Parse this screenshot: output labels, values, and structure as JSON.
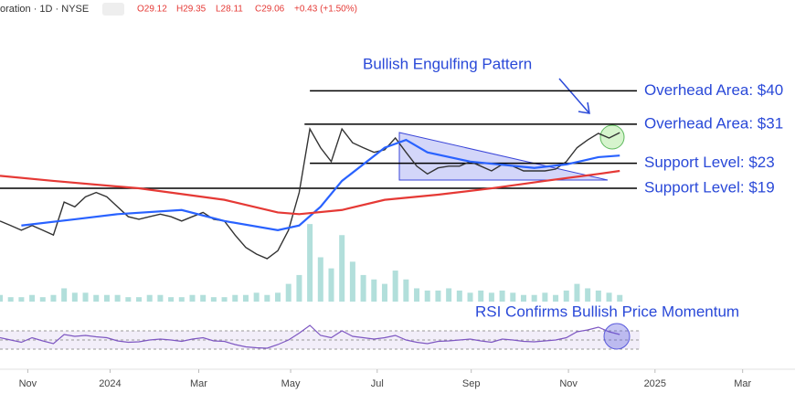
{
  "header": {
    "symbol": "oration · 1D · NYSE",
    "open": "O29.12",
    "high": "H29.35",
    "low": "L28.11",
    "close": "C29.06",
    "change": "+0.43 (+1.50%)"
  },
  "chart_data": {
    "type": "line",
    "annotations": {
      "pattern": "Bullish Engulfing Pattern",
      "rsi": "RSI Confirms Bullish Price Momentum"
    },
    "levels": [
      {
        "label": "Overhead Area: $40",
        "value": 40
      },
      {
        "label": "Overhead Area: $31",
        "value": 31
      },
      {
        "label": "Support Level: $23",
        "value": 23
      },
      {
        "label": "Support Level: $19",
        "value": 19
      }
    ],
    "log_scale": true,
    "ylim": [
      8,
      80
    ],
    "xlim": [
      0,
      74.4
    ],
    "xticks": [
      {
        "value": 2.6,
        "label": "Nov"
      },
      {
        "value": 10.3,
        "label": "2024"
      },
      {
        "value": 18.6,
        "label": "Mar"
      },
      {
        "value": 27.2,
        "label": "May"
      },
      {
        "value": 35.3,
        "label": "Jul"
      },
      {
        "value": 44.1,
        "label": "Sep"
      },
      {
        "value": 53.2,
        "label": "Nov"
      },
      {
        "value": 61.3,
        "label": "2025"
      },
      {
        "value": 69.5,
        "label": "Mar"
      }
    ],
    "series": [
      {
        "color": "#333333",
        "values": [
          14.8,
          14.3,
          13.8,
          14.3,
          13.8,
          13.3,
          17.1,
          16.5,
          17.8,
          18.4,
          17.8,
          16.5,
          15.3,
          15.0,
          15.3,
          15.6,
          15.3,
          14.8,
          15.3,
          15.8,
          15.0,
          14.8,
          13.3,
          12.1,
          11.5,
          11.1,
          11.8,
          13.8,
          18.4,
          29.9,
          25.9,
          23.3,
          29.9,
          26.9,
          25.9,
          25.0,
          25.5,
          27.9,
          25.0,
          22.5,
          21.2,
          22.2,
          22.5,
          22.5,
          23.3,
          22.5,
          21.7,
          22.8,
          22.5,
          21.7,
          21.7,
          21.7,
          22.0,
          23.3,
          25.9,
          27.5,
          28.9,
          27.9,
          29.06
        ]
      },
      {
        "color": "#2962ff",
        "x": [
          2,
          7,
          11,
          17,
          21,
          26,
          28,
          30,
          32,
          36,
          38,
          40,
          44,
          50,
          53,
          56,
          58
        ],
        "values": [
          14.3,
          15.0,
          15.6,
          16.1,
          14.8,
          13.8,
          14.3,
          16.5,
          20.1,
          25.9,
          27.5,
          25.0,
          23.3,
          22.2,
          22.8,
          24.1,
          24.4
        ]
      },
      {
        "color": "#e53935",
        "x": [
          0,
          5,
          13,
          21,
          26,
          28,
          32,
          36,
          41,
          46,
          51,
          56,
          58
        ],
        "values": [
          20.9,
          20.1,
          19.0,
          17.4,
          15.8,
          15.6,
          16.1,
          17.4,
          18.1,
          19.0,
          20.1,
          21.2,
          21.7
        ]
      }
    ],
    "volume": {
      "color": "#b2dfdb",
      "vlim": [
        0,
        40
      ],
      "values": [
        3,
        2,
        2,
        3,
        2,
        3,
        6,
        4,
        4,
        3,
        3,
        3,
        2,
        2,
        3,
        3,
        2,
        2,
        3,
        3,
        2,
        2,
        3,
        3,
        4,
        3,
        4,
        8,
        12,
        35,
        20,
        15,
        30,
        18,
        12,
        10,
        8,
        14,
        10,
        6,
        5,
        5,
        6,
        5,
        4,
        5,
        4,
        5,
        4,
        3,
        3,
        4,
        3,
        5,
        8,
        6,
        5,
        4,
        3
      ]
    },
    "rsi": {
      "color": "#7e57c2",
      "ylim": [
        0,
        100
      ],
      "levels": [
        70,
        50,
        30
      ],
      "values": [
        55,
        50,
        45,
        55,
        48,
        42,
        62,
        58,
        60,
        57,
        55,
        48,
        45,
        46,
        50,
        52,
        50,
        47,
        52,
        55,
        48,
        47,
        40,
        35,
        33,
        32,
        40,
        50,
        65,
        82,
        60,
        55,
        70,
        58,
        55,
        52,
        55,
        60,
        50,
        45,
        42,
        47,
        48,
        50,
        52,
        48,
        45,
        52,
        50,
        47,
        46,
        48,
        50,
        55,
        68,
        72,
        78,
        68,
        62
      ]
    }
  }
}
